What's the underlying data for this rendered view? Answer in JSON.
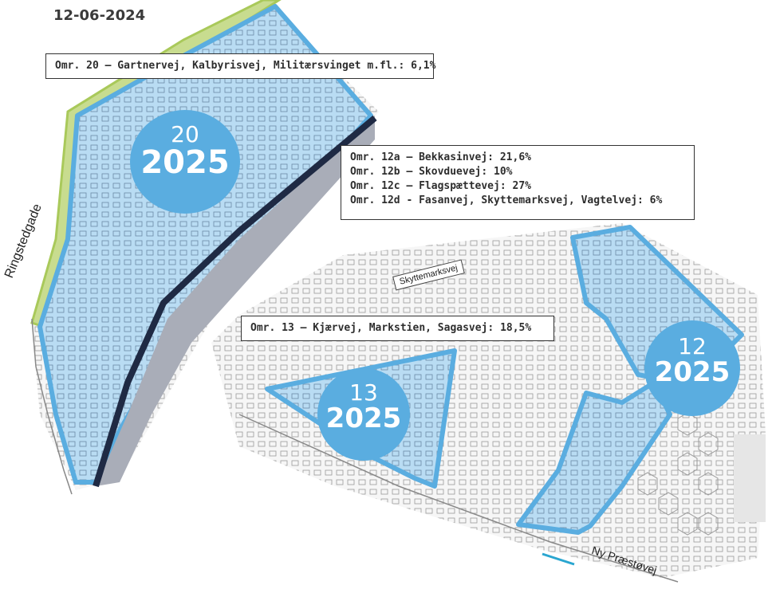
{
  "date": "12-06-2024",
  "areas": {
    "omr20": {
      "label": "Omr. 20 – Gartnervej, Kalbyrisvej, Militærsvinget m.fl.: 6,1%",
      "number": "20",
      "year": "2025"
    },
    "omr12": {
      "lines": [
        "Omr. 12a – Bekkasinvej: 21,6%",
        "Omr. 12b – Skovduevej: 10%",
        "Omr. 12c – Flagspættevej: 27%",
        "Omr. 12d - Fasanvej, Skyttemarksvej, Vagtelvej: 6%"
      ],
      "number": "12",
      "year": "2025"
    },
    "omr13": {
      "label": "Omr. 13 – Kjærvej, Markstien, Sagasvej: 18,5%",
      "number": "13",
      "year": "2025"
    }
  },
  "streets": {
    "ringstedgade": "Ringstedgade",
    "skyttemarksvej": "Skyttemarksvej",
    "ny_praestoevej": "Ny Præstøvej"
  },
  "colors": {
    "area_fill": "#b9dcf3",
    "area_border": "#5aade0",
    "badge": "#5aade0",
    "railway": "#1f2a44",
    "green_strip": "#a9c95a"
  }
}
